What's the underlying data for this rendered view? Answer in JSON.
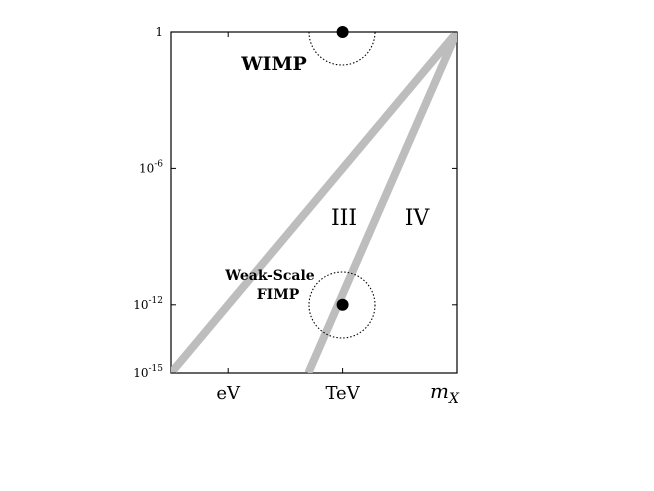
{
  "chart_data": {
    "type": "line",
    "title": "",
    "xlabel": "m",
    "xlabel_sub": "X",
    "ylabel": "",
    "x_ticks": [
      {
        "label": "eV",
        "x": 0.2
      },
      {
        "label": "TeV",
        "x": 0.6
      }
    ],
    "y_scale": "log",
    "ylim_exp": [
      -15,
      0
    ],
    "y_ticks": [
      {
        "base": "1",
        "exp": "",
        "y_exp": 0
      },
      {
        "base": "10",
        "exp": "-6",
        "y_exp": -6
      },
      {
        "base": "10",
        "exp": "-12",
        "y_exp": -12
      },
      {
        "base": "10",
        "exp": "-15",
        "y_exp": -15
      }
    ],
    "xlim": [
      0,
      1
    ],
    "series": [
      {
        "points": [
          [
            0,
            -15
          ],
          [
            1,
            0
          ]
        ],
        "color": "#bdbdbd"
      },
      {
        "points": [
          [
            0.48,
            -15
          ],
          [
            1,
            0
          ]
        ],
        "color": "#bdbdbd"
      }
    ],
    "markers": [
      {
        "label": "WIMP",
        "x": 0.6,
        "y_exp": 0
      },
      {
        "label": "Weak-Scale FIMP",
        "x": 0.6,
        "y_exp": -12
      }
    ],
    "region_labels": [
      "III",
      "IV"
    ],
    "annotations": {
      "wimp": "WIMP",
      "fimp_line1": "Weak-Scale",
      "fimp_line2": "FIMP"
    },
    "colors": {
      "line": "#bdbdbd",
      "point": "#000000",
      "frame": "#000000"
    }
  }
}
